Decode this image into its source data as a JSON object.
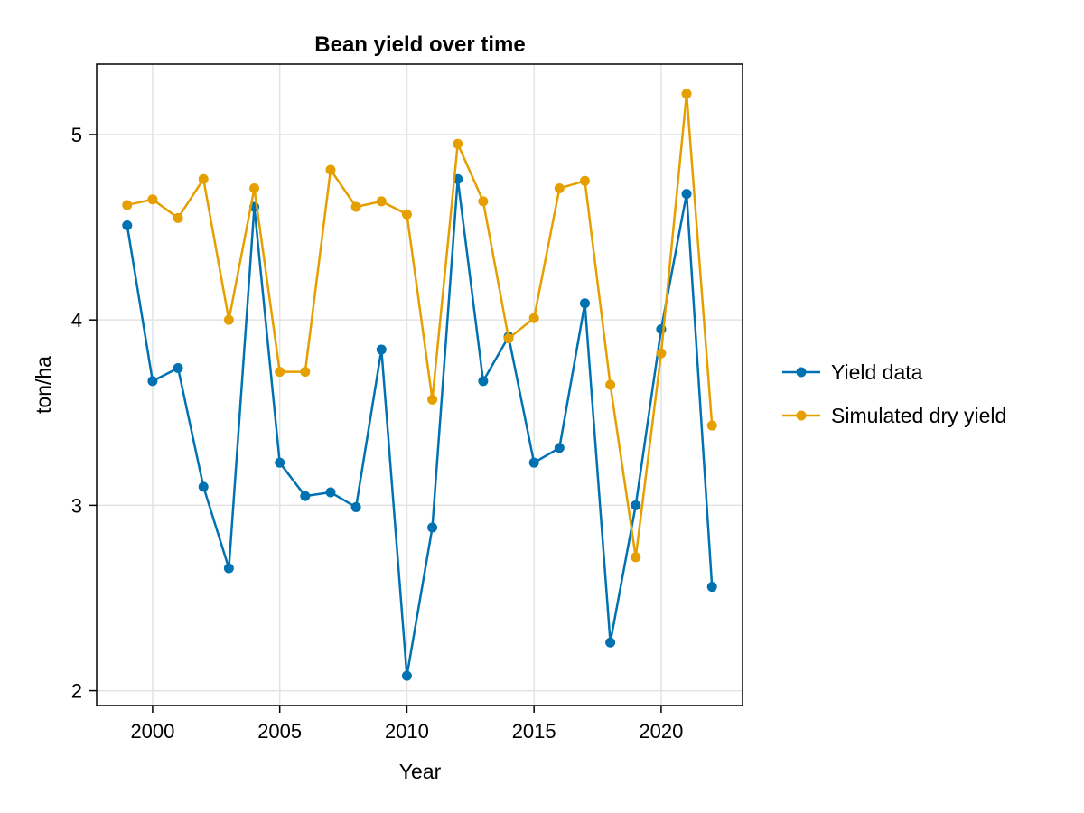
{
  "chart_data": {
    "type": "line",
    "title": "Bean yield over time",
    "xlabel": "Year",
    "ylabel": "ton/ha",
    "xlim": [
      1997.8,
      2023.2
    ],
    "ylim": [
      1.92,
      5.38
    ],
    "xticks": [
      2000,
      2005,
      2010,
      2015,
      2020
    ],
    "yticks": [
      2,
      3,
      4,
      5
    ],
    "grid": true,
    "legend_position": "right",
    "x": [
      1999,
      2000,
      2001,
      2002,
      2003,
      2004,
      2005,
      2006,
      2007,
      2008,
      2009,
      2010,
      2011,
      2012,
      2013,
      2014,
      2015,
      2016,
      2017,
      2018,
      2019,
      2020,
      2021,
      2022
    ],
    "series": [
      {
        "name": "Yield data",
        "color": "#0072b2",
        "values": [
          4.51,
          3.67,
          3.74,
          3.1,
          2.66,
          4.61,
          3.23,
          3.05,
          3.07,
          2.99,
          3.84,
          2.08,
          2.88,
          4.76,
          3.67,
          3.91,
          3.23,
          3.31,
          4.09,
          2.26,
          3.0,
          3.95,
          4.68,
          2.56
        ]
      },
      {
        "name": "Simulated dry yield",
        "color": "#e69f00",
        "values": [
          4.62,
          4.65,
          4.55,
          4.76,
          4.0,
          4.71,
          3.72,
          3.72,
          4.81,
          4.61,
          4.64,
          4.57,
          3.57,
          4.95,
          4.64,
          3.9,
          4.01,
          4.71,
          4.75,
          3.65,
          2.72,
          3.82,
          5.22,
          3.43
        ]
      }
    ]
  }
}
